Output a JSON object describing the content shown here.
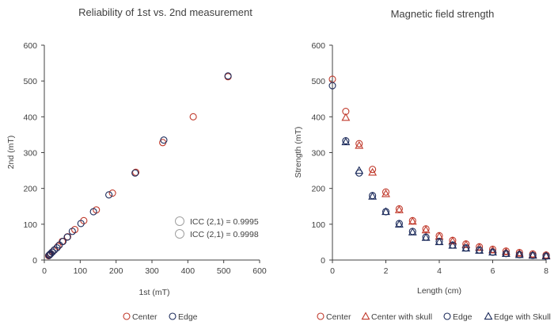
{
  "colors": {
    "center": "#c0392b",
    "edge": "#1b2a5a",
    "annot": "#a0a0a0",
    "axis": "#404040"
  },
  "chart_data": [
    {
      "type": "scatter",
      "title": "Reliability of 1st vs. 2nd measurement",
      "xlabel": "1st (mT)",
      "ylabel": "2nd (mT)",
      "xlim": [
        0,
        600
      ],
      "ylim": [
        0,
        600
      ],
      "xticks": [
        "0",
        "100",
        "200",
        "300",
        "400",
        "500",
        "600"
      ],
      "yticks": [
        "0",
        "100",
        "200",
        "300",
        "400",
        "500",
        "600"
      ],
      "grid": false,
      "legend_position": "bottom",
      "annotations": [
        "ICC (2,1) = 0.9995",
        "ICC (2,1) = 0.9998"
      ],
      "series": [
        {
          "name": "Center",
          "marker": "circle",
          "color": "#c0392b",
          "points": [
            [
              512,
              512
            ],
            [
              415,
              400
            ],
            [
              330,
              328
            ],
            [
              255,
              245
            ],
            [
              190,
              187
            ],
            [
              145,
              140
            ],
            [
              110,
              110
            ],
            [
              85,
              85
            ],
            [
              65,
              65
            ],
            [
              50,
              52
            ],
            [
              38,
              38
            ],
            [
              28,
              28
            ],
            [
              22,
              22
            ],
            [
              17,
              17
            ],
            [
              14,
              14
            ],
            [
              12,
              12
            ]
          ]
        },
        {
          "name": "Edge",
          "marker": "circle",
          "color": "#1b2a5a",
          "points": [
            [
              512,
              514
            ],
            [
              333,
              335
            ],
            [
              253,
              243
            ],
            [
              180,
              182
            ],
            [
              137,
              135
            ],
            [
              102,
              102
            ],
            [
              78,
              80
            ],
            [
              64,
              64
            ],
            [
              52,
              52
            ],
            [
              42,
              42
            ],
            [
              35,
              34
            ],
            [
              28,
              28
            ],
            [
              22,
              22
            ],
            [
              18,
              18
            ],
            [
              15,
              15
            ],
            [
              13,
              13
            ]
          ]
        }
      ]
    },
    {
      "type": "scatter",
      "title": "Magnetic field strength",
      "xlabel": "Length (cm)",
      "ylabel": "Strength (mT)",
      "xlim": [
        0,
        8
      ],
      "ylim": [
        0,
        600
      ],
      "xticks": [
        "0",
        "2",
        "4",
        "6",
        "8"
      ],
      "yticks": [
        "0",
        "100",
        "200",
        "300",
        "400",
        "500",
        "600"
      ],
      "grid": false,
      "legend_position": "bottom",
      "x": [
        0,
        0.5,
        1,
        1.5,
        2,
        2.5,
        3,
        3.5,
        4,
        4.5,
        5,
        5.5,
        6,
        6.5,
        7,
        7.5,
        8
      ],
      "series": [
        {
          "name": "Center",
          "marker": "circle",
          "color": "#c0392b",
          "values": [
            505,
            415,
            325,
            253,
            190,
            143,
            110,
            87,
            68,
            55,
            45,
            37,
            30,
            25,
            21,
            17,
            14
          ]
        },
        {
          "name": "Center with skull",
          "marker": "triangle",
          "color": "#c0392b",
          "values": [
            null,
            398,
            320,
            245,
            185,
            140,
            108,
            84,
            66,
            53,
            43,
            35,
            28,
            23,
            19,
            15,
            13
          ]
        },
        {
          "name": "Edge",
          "marker": "circle",
          "color": "#1b2a5a",
          "values": [
            487,
            333,
            243,
            180,
            135,
            102,
            80,
            64,
            52,
            42,
            34,
            28,
            22,
            18,
            15,
            13,
            11
          ]
        },
        {
          "name": "Edge with Skull",
          "marker": "triangle",
          "color": "#1b2a5a",
          "values": [
            null,
            330,
            250,
            178,
            135,
            100,
            78,
            63,
            51,
            41,
            33,
            27,
            22,
            18,
            15,
            13,
            11
          ]
        }
      ]
    }
  ]
}
